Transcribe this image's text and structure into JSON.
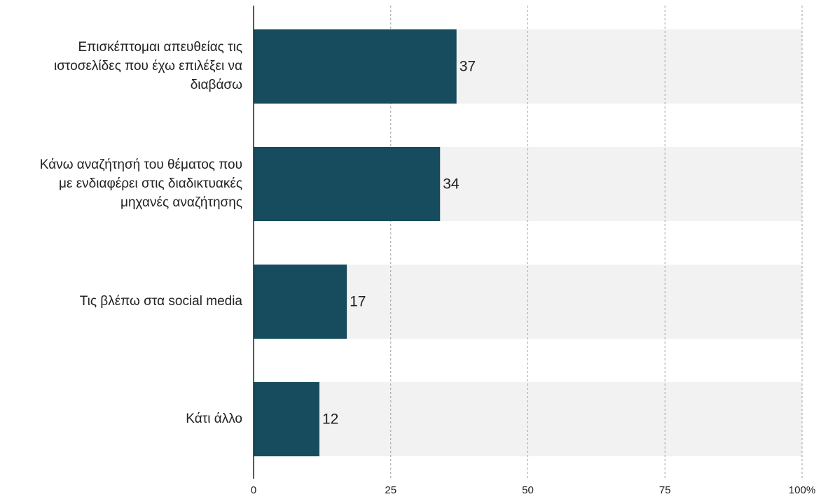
{
  "chart_data": {
    "type": "bar",
    "orientation": "horizontal",
    "categories": [
      "Επισκέπτομαι απευθείας τις ιστοσελίδες που έχω επιλέξει να διαβάσω",
      "Κάνω αναζήτησή του θέματος που με ενδιαφέρει στις διαδικτυακές μηχανές αναζήτησης",
      "Τις βλέπω στα social media",
      "Κάτι άλλο"
    ],
    "category_lines": [
      [
        "Επισκέπτομαι απευθείας τις",
        "ιστοσελίδες που έχω επιλέξει να",
        "διαβάσω"
      ],
      [
        "Κάνω αναζήτησή του θέματος που",
        "με ενδιαφέρει στις διαδικτυακές",
        "μηχανές αναζήτησης"
      ],
      [
        "Τις βλέπω στα social media"
      ],
      [
        "Κάτι άλλο"
      ]
    ],
    "values": [
      37,
      34,
      17,
      12
    ],
    "value_labels": [
      "37",
      "34",
      "17",
      "12"
    ],
    "xlim": [
      0,
      100
    ],
    "x_ticks": [
      0,
      25,
      50,
      75,
      100
    ],
    "x_tick_labels": [
      "0",
      "25",
      "50",
      "75",
      "100%"
    ],
    "grid": true,
    "colors": {
      "bar": "#174c5e",
      "track": "#f2f2f2",
      "grid": "#9e9e9e",
      "axis": "#222222",
      "text": "#222222"
    }
  }
}
